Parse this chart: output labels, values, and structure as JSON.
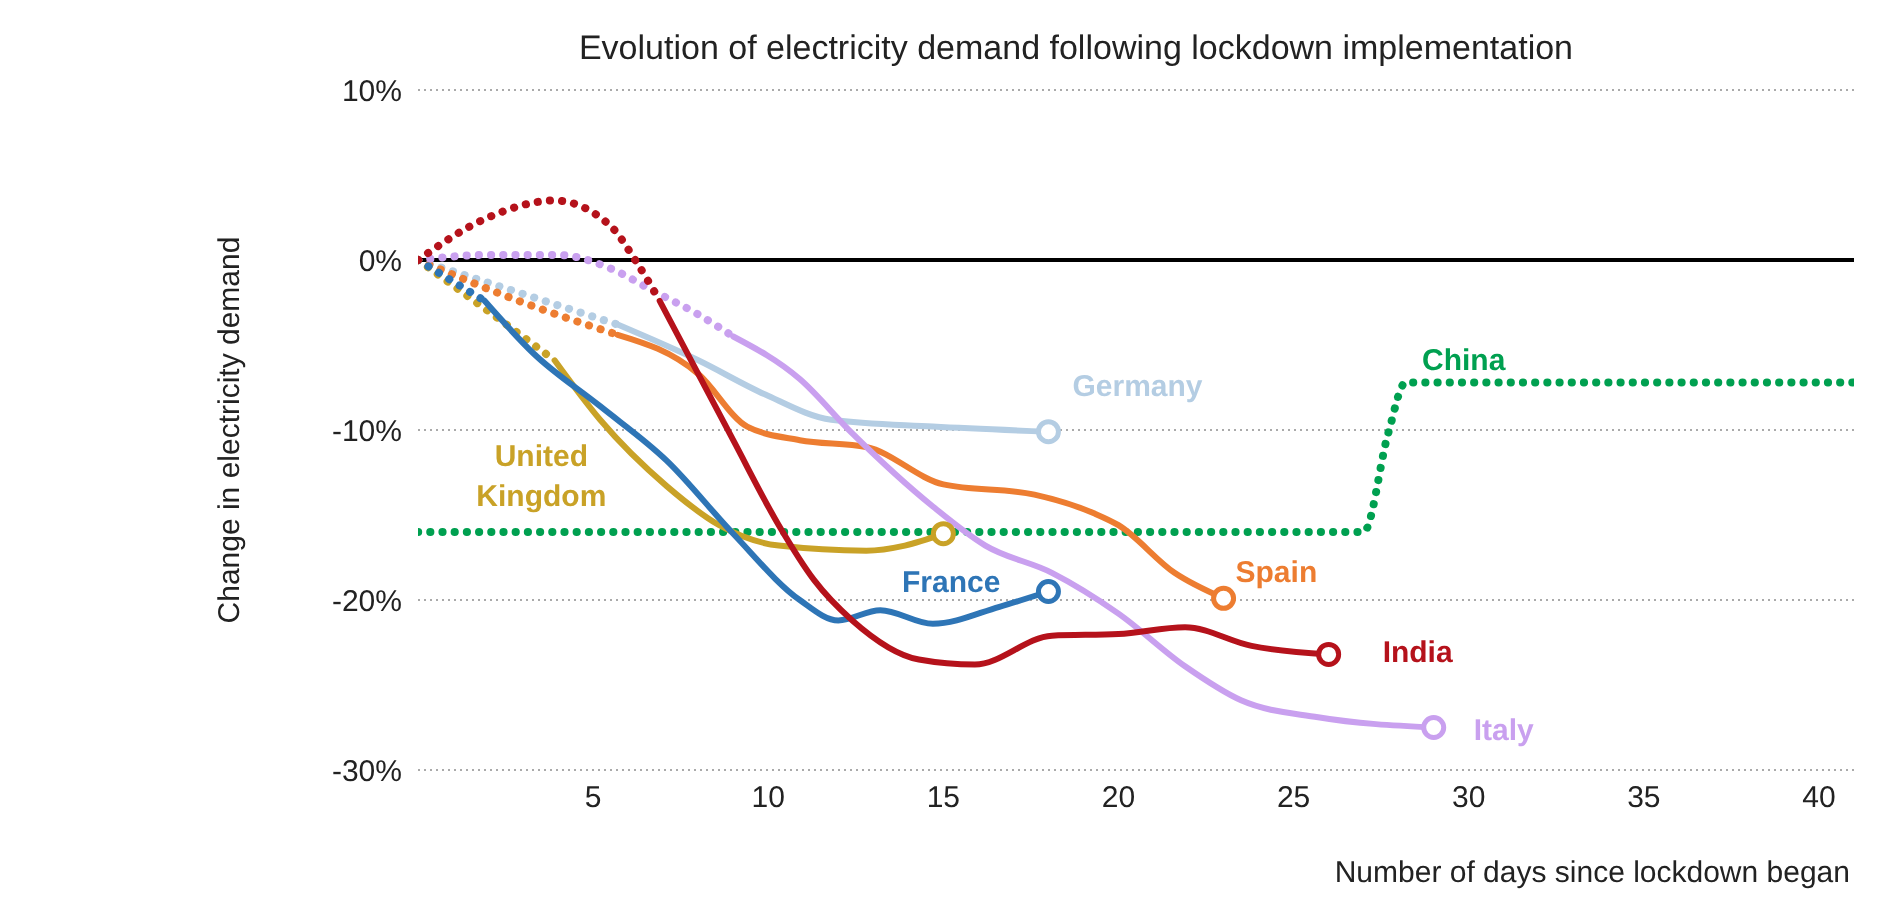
{
  "chart_data": {
    "type": "line",
    "title": "Evolution of electricity demand following lockdown implementation",
    "xlabel": "Number of days since lockdown began",
    "ylabel": "Change in electricity demand",
    "xlim": [
      0,
      41
    ],
    "xticks": [
      5,
      10,
      15,
      20,
      25,
      30,
      35,
      40
    ],
    "ylim": [
      -30,
      10
    ],
    "yticks": [
      {
        "value": -30,
        "label": "-30%"
      },
      {
        "value": -20,
        "label": "-20%"
      },
      {
        "value": -10,
        "label": "-10%"
      },
      {
        "value": 0,
        "label": "0%"
      },
      {
        "value": 10,
        "label": "10%"
      }
    ],
    "grid": "y",
    "ref_lines": [
      {
        "axis": "y",
        "value": 0,
        "color": "#000000",
        "line_style": "solid"
      }
    ],
    "series": [
      {
        "color": "#00a050",
        "name": "China",
        "line_style": "dotted",
        "x": [
          0,
          27,
          27.7,
          28.2,
          41
        ],
        "values": [
          -16,
          -16,
          -10.2,
          -7.2,
          -7.2
        ]
      },
      {
        "color": "#b4cde3",
        "line_style": "dotted",
        "x": [
          0,
          3,
          5.7
        ],
        "values": [
          0,
          -2,
          -3.8
        ]
      },
      {
        "color": "#b4cde3",
        "name": "Germany",
        "line_style": "solid",
        "x": [
          5.7,
          8,
          9.9,
          11.8,
          14.7,
          18
        ],
        "values": [
          -3.8,
          -5.9,
          -7.9,
          -9.4,
          -9.8,
          -10.1
        ]
      },
      {
        "color": "#ed7d31",
        "line_style": "dotted",
        "x": [
          0,
          3,
          5.7
        ],
        "values": [
          0,
          -2.5,
          -4.4
        ]
      },
      {
        "color": "#ed7d31",
        "name": "Spain",
        "line_style": "solid",
        "x": [
          5.7,
          8,
          9.4,
          10.9,
          12.8,
          15,
          17.6,
          19.3,
          20,
          21.6,
          23
        ],
        "values": [
          -4.4,
          -6.7,
          -9.8,
          -10.6,
          -11,
          -13.2,
          -13.8,
          -14.9,
          -15.6,
          -18.4,
          -19.9
        ]
      },
      {
        "color": "#c9a0ef",
        "line_style": "dotted",
        "x": [
          0,
          2,
          4,
          5.5,
          6.7,
          8,
          9
        ],
        "values": [
          0,
          0.3,
          0.3,
          -0.5,
          -1.8,
          -3.2,
          -4.5
        ]
      },
      {
        "color": "#c9a0ef",
        "name": "Italy",
        "line_style": "solid",
        "x": [
          9,
          10.9,
          12.4,
          14.7,
          16.2,
          18.1,
          20,
          21.9,
          23.5,
          25.7,
          29
        ],
        "values": [
          -4.5,
          -7,
          -10.2,
          -14.5,
          -16.8,
          -18.4,
          -20.8,
          -23.9,
          -25.9,
          -26.9,
          -27.5
        ]
      },
      {
        "color": "#c9a227",
        "line_style": "dotted",
        "x": [
          0,
          2,
          3.9
        ],
        "values": [
          0,
          -3,
          -5.9
        ]
      },
      {
        "color": "#c9a227",
        "name": "United Kingdom",
        "line_style": "solid",
        "x": [
          3.9,
          5.2,
          7.1,
          8.6,
          10.3,
          12.8,
          13.9,
          15
        ],
        "values": [
          -5.9,
          -9.4,
          -13.3,
          -15.6,
          -16.8,
          -17.1,
          -16.8,
          -16.1
        ]
      },
      {
        "color": "#2e75b6",
        "line_style": "dotted",
        "x": [
          0,
          1.9
        ],
        "values": [
          0,
          -2.4
        ]
      },
      {
        "color": "#2e75b6",
        "name": "France",
        "line_style": "solid",
        "x": [
          1.9,
          3.3,
          5.2,
          7.1,
          9,
          10.9,
          12,
          13.2,
          14.7,
          16.6,
          18
        ],
        "values": [
          -2.4,
          -5.5,
          -8.6,
          -11.8,
          -16.1,
          -20,
          -21.2,
          -20.6,
          -21.4,
          -20.4,
          -19.5
        ]
      },
      {
        "color": "#b5121b",
        "line_style": "dotted",
        "x": [
          0,
          2,
          3.9,
          5.5,
          6.2,
          6.9
        ],
        "values": [
          0,
          2.5,
          3.5,
          2,
          0,
          -2.4
        ]
      },
      {
        "color": "#b5121b",
        "name": "India",
        "line_style": "solid",
        "x": [
          6.9,
          8,
          9,
          10.3,
          11.3,
          12.4,
          14.3,
          15.9,
          18.1,
          20,
          21.9,
          23.8,
          26
        ],
        "values": [
          -2.4,
          -6.7,
          -10.6,
          -15.6,
          -18.8,
          -21.2,
          -23.5,
          -23.8,
          -22.1,
          -22,
          -21.6,
          -22.7,
          -23.2
        ]
      }
    ]
  }
}
